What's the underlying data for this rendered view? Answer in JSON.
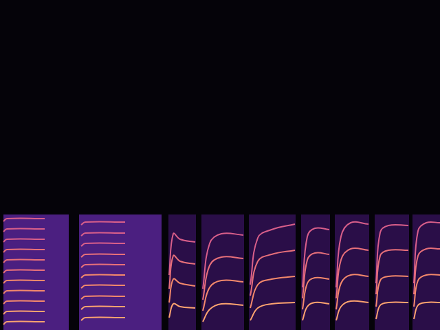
{
  "chart_data": {
    "type": "spectrogram",
    "xlim": [
      0,
      640
    ],
    "ylim": [
      0,
      480
    ],
    "tick_labels": false,
    "grid": false,
    "legend": false,
    "series": [
      {
        "type": "area",
        "color": "#4b1f80",
        "x": [
          5,
          100
        ],
        "values": [
          168,
          168
        ]
      },
      {
        "type": "area",
        "color": "#4b1f80",
        "x": [
          115,
          235
        ],
        "values": [
          168,
          168
        ]
      },
      {
        "type": "area",
        "color": "#2a0e48",
        "x": [
          245,
          285
        ],
        "values": [
          168,
          168
        ]
      },
      {
        "type": "area",
        "color": "#2a0e48",
        "x": [
          293,
          355
        ],
        "values": [
          168,
          168
        ]
      },
      {
        "type": "area",
        "color": "#2a0e48",
        "x": [
          362,
          430
        ],
        "values": [
          168,
          168
        ]
      },
      {
        "type": "area",
        "color": "#2a0e48",
        "x": [
          438,
          480
        ],
        "values": [
          168,
          168
        ]
      },
      {
        "type": "area",
        "color": "#2a0e48",
        "x": [
          487,
          537
        ],
        "values": [
          168,
          168
        ]
      },
      {
        "type": "area",
        "color": "#2a0e48",
        "x": [
          545,
          595
        ],
        "values": [
          168,
          168
        ]
      },
      {
        "type": "area",
        "color": "#2a0e48",
        "x": [
          600,
          640
        ],
        "values": [
          168,
          168
        ]
      },
      {
        "type": "line",
        "color": "#fba36f",
        "x": [
          5,
          10,
          65
        ],
        "values": [
          8,
          12,
          12
        ]
      },
      {
        "type": "line",
        "color": "#fba36f",
        "x": [
          5,
          10,
          65
        ],
        "values": [
          23,
          27,
          27
        ]
      },
      {
        "type": "line",
        "color": "#f4896b",
        "x": [
          5,
          10,
          65
        ],
        "values": [
          38,
          42,
          42
        ]
      },
      {
        "type": "line",
        "color": "#f4896b",
        "x": [
          5,
          10,
          65
        ],
        "values": [
          53,
          57,
          57
        ]
      },
      {
        "type": "line",
        "color": "#f4896b",
        "x": [
          5,
          10,
          65
        ],
        "values": [
          68,
          72,
          72
        ]
      },
      {
        "type": "line",
        "color": "#e8707a",
        "x": [
          5,
          10,
          65
        ],
        "values": [
          83,
          87,
          87
        ]
      },
      {
        "type": "line",
        "color": "#e8707a",
        "x": [
          5,
          10,
          65
        ],
        "values": [
          98,
          102,
          102
        ]
      },
      {
        "type": "line",
        "color": "#e8707a",
        "x": [
          5,
          10,
          65
        ],
        "values": [
          113,
          117,
          117
        ]
      },
      {
        "type": "line",
        "color": "#d95f8a",
        "x": [
          5,
          10,
          65
        ],
        "values": [
          128,
          132,
          132
        ]
      },
      {
        "type": "line",
        "color": "#d95f8a",
        "x": [
          5,
          10,
          65
        ],
        "values": [
          143,
          147,
          147
        ]
      },
      {
        "type": "line",
        "color": "#d95f8a",
        "x": [
          5,
          10,
          65
        ],
        "values": [
          158,
          162,
          162
        ]
      },
      {
        "type": "line",
        "color": "#fba36f",
        "x": [
          118,
          124,
          182
        ],
        "values": [
          14,
          18,
          18
        ]
      },
      {
        "type": "line",
        "color": "#fba36f",
        "x": [
          118,
          124,
          182
        ],
        "values": [
          30,
          34,
          34
        ]
      },
      {
        "type": "line",
        "color": "#f4896b",
        "x": [
          118,
          124,
          182
        ],
        "values": [
          45,
          49,
          49
        ]
      },
      {
        "type": "line",
        "color": "#f4896b",
        "x": [
          118,
          124,
          182
        ],
        "values": [
          61,
          65,
          65
        ]
      },
      {
        "type": "line",
        "color": "#f4896b",
        "x": [
          118,
          124,
          182
        ],
        "values": [
          76,
          80,
          80
        ]
      },
      {
        "type": "line",
        "color": "#e8707a",
        "x": [
          118,
          124,
          182
        ],
        "values": [
          91,
          95,
          95
        ]
      },
      {
        "type": "line",
        "color": "#e8707a",
        "x": [
          118,
          124,
          182
        ],
        "values": [
          106,
          110,
          110
        ]
      },
      {
        "type": "line",
        "color": "#d95f8a",
        "x": [
          118,
          124,
          182
        ],
        "values": [
          122,
          126,
          126
        ]
      },
      {
        "type": "line",
        "color": "#d95f8a",
        "x": [
          118,
          124,
          182
        ],
        "values": [
          137,
          141,
          141
        ]
      },
      {
        "type": "line",
        "color": "#d95f8a",
        "x": [
          118,
          124,
          182
        ],
        "values": [
          153,
          157,
          157
        ]
      },
      {
        "type": "line",
        "color": "#fba36f",
        "x": [
          246,
          252,
          262,
          284
        ],
        "values": [
          18,
          38,
          34,
          32
        ]
      },
      {
        "type": "line",
        "color": "#f4896b",
        "x": [
          246,
          252,
          262,
          284
        ],
        "values": [
          40,
          74,
          68,
          64
        ]
      },
      {
        "type": "line",
        "color": "#e8707a",
        "x": [
          246,
          252,
          262,
          284
        ],
        "values": [
          60,
          108,
          100,
          96
        ]
      },
      {
        "type": "line",
        "color": "#d95f8a",
        "x": [
          246,
          252,
          262,
          284
        ],
        "values": [
          80,
          140,
          132,
          128
        ]
      },
      {
        "type": "line",
        "color": "#fba36f",
        "x": [
          295,
          305,
          322,
          354
        ],
        "values": [
          12,
          30,
          38,
          36
        ]
      },
      {
        "type": "line",
        "color": "#f4896b",
        "x": [
          295,
          305,
          322,
          354
        ],
        "values": [
          28,
          62,
          72,
          70
        ]
      },
      {
        "type": "line",
        "color": "#e8707a",
        "x": [
          295,
          305,
          322,
          354
        ],
        "values": [
          44,
          94,
          106,
          104
        ]
      },
      {
        "type": "line",
        "color": "#d95f8a",
        "x": [
          295,
          305,
          322,
          354
        ],
        "values": [
          60,
          126,
          140,
          138
        ]
      },
      {
        "type": "line",
        "color": "#fba36f",
        "x": [
          364,
          375,
          395,
          429
        ],
        "values": [
          14,
          32,
          38,
          40
        ]
      },
      {
        "type": "line",
        "color": "#f4896b",
        "x": [
          364,
          375,
          395,
          429
        ],
        "values": [
          32,
          66,
          74,
          78
        ]
      },
      {
        "type": "line",
        "color": "#e8707a",
        "x": [
          364,
          375,
          395,
          429
        ],
        "values": [
          50,
          100,
          110,
          116
        ]
      },
      {
        "type": "line",
        "color": "#d95f8a",
        "x": [
          364,
          375,
          395,
          429
        ],
        "values": [
          66,
          134,
          146,
          154
        ]
      },
      {
        "type": "line",
        "color": "#fba36f",
        "x": [
          440,
          447,
          458,
          479
        ],
        "values": [
          14,
          34,
          40,
          38
        ]
      },
      {
        "type": "line",
        "color": "#f4896b",
        "x": [
          440,
          447,
          458,
          479
        ],
        "values": [
          30,
          68,
          76,
          74
        ]
      },
      {
        "type": "line",
        "color": "#e8707a",
        "x": [
          440,
          447,
          458,
          479
        ],
        "values": [
          46,
          102,
          112,
          110
        ]
      },
      {
        "type": "line",
        "color": "#d95f8a",
        "x": [
          440,
          447,
          458,
          479
        ],
        "values": [
          62,
          136,
          148,
          146
        ]
      },
      {
        "type": "line",
        "color": "#fba36f",
        "x": [
          489,
          496,
          510,
          536
        ],
        "values": [
          14,
          34,
          42,
          40
        ]
      },
      {
        "type": "line",
        "color": "#f4896b",
        "x": [
          489,
          496,
          510,
          536
        ],
        "values": [
          30,
          68,
          80,
          78
        ]
      },
      {
        "type": "line",
        "color": "#e8707a",
        "x": [
          489,
          496,
          510,
          536
        ],
        "values": [
          46,
          102,
          118,
          116
        ]
      },
      {
        "type": "line",
        "color": "#d95f8a",
        "x": [
          489,
          496,
          510,
          536
        ],
        "values": [
          62,
          136,
          156,
          154
        ]
      },
      {
        "type": "line",
        "color": "#fba36f",
        "x": [
          547,
          553,
          565,
          594
        ],
        "values": [
          16,
          36,
          40,
          40
        ]
      },
      {
        "type": "line",
        "color": "#f4896b",
        "x": [
          547,
          553,
          565,
          594
        ],
        "values": [
          34,
          72,
          78,
          78
        ]
      },
      {
        "type": "line",
        "color": "#e8707a",
        "x": [
          547,
          553,
          565,
          594
        ],
        "values": [
          52,
          108,
          116,
          116
        ]
      },
      {
        "type": "line",
        "color": "#d95f8a",
        "x": [
          547,
          553,
          565,
          594
        ],
        "values": [
          68,
          142,
          152,
          152
        ]
      },
      {
        "type": "line",
        "color": "#fba36f",
        "x": [
          602,
          608,
          620,
          640
        ],
        "values": [
          16,
          36,
          40,
          40
        ]
      },
      {
        "type": "line",
        "color": "#f4896b",
        "x": [
          602,
          608,
          620,
          640
        ],
        "values": [
          34,
          72,
          80,
          80
        ]
      },
      {
        "type": "line",
        "color": "#e8707a",
        "x": [
          602,
          608,
          620,
          640
        ],
        "values": [
          52,
          108,
          118,
          118
        ]
      },
      {
        "type": "line",
        "color": "#d95f8a",
        "x": [
          602,
          608,
          620,
          640
        ],
        "values": [
          68,
          144,
          156,
          156
        ]
      }
    ]
  }
}
